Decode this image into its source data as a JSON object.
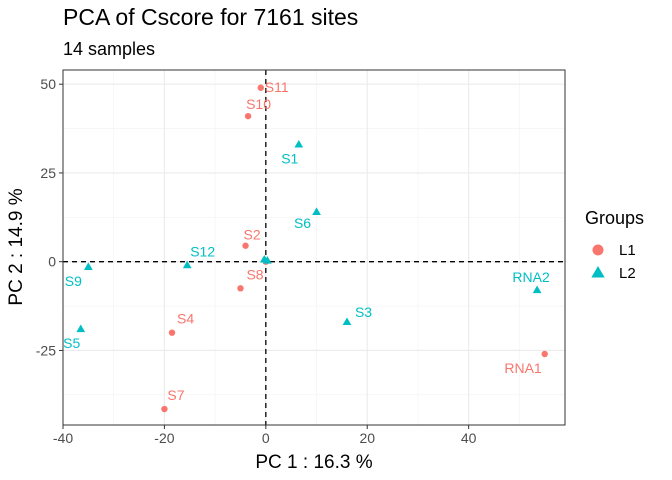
{
  "chart_data": {
    "type": "scatter",
    "title": "PCA of Cscore for 7161 sites",
    "subtitle": "14 samples",
    "xlabel": "PC 1 : 16.3 %",
    "ylabel": "PC 2 : 14.9 %",
    "xlim": [
      -40,
      59
    ],
    "ylim": [
      -46,
      54
    ],
    "xticks": [
      -40,
      -20,
      0,
      20,
      40
    ],
    "xtick_labels": [
      "-40",
      "-20",
      "0",
      "20",
      "40"
    ],
    "yticks": [
      -25,
      0,
      25,
      50
    ],
    "ytick_labels": [
      "-25",
      "0",
      "25",
      "50"
    ],
    "grid": true,
    "reference_lines": {
      "x": 0,
      "y": 0
    },
    "legend": {
      "title": "Groups",
      "position": "right"
    },
    "series": [
      {
        "name": "L1",
        "color": "#F8766D",
        "marker": "circle",
        "points": [
          {
            "label": "S11",
            "x": -1,
            "y": 49
          },
          {
            "label": "S10",
            "x": -3.5,
            "y": 41
          },
          {
            "label": "S2",
            "x": -4,
            "y": 4.5
          },
          {
            "label": "S8",
            "x": -5,
            "y": -7.5
          },
          {
            "label": "S4",
            "x": -18.5,
            "y": -20
          },
          {
            "label": "S7",
            "x": -20,
            "y": -41.5
          },
          {
            "label": "RNA1",
            "x": 55,
            "y": -26
          },
          {
            "label": "",
            "x": 0,
            "y": 0
          }
        ]
      },
      {
        "name": "L2",
        "color": "#00BFC4",
        "marker": "triangle",
        "points": [
          {
            "label": "S1",
            "x": 6.5,
            "y": 33
          },
          {
            "label": "S6",
            "x": 10,
            "y": 14
          },
          {
            "label": "S12",
            "x": -15.5,
            "y": -1
          },
          {
            "label": "S9",
            "x": -35,
            "y": -1.5
          },
          {
            "label": "S5",
            "x": -36.5,
            "y": -19
          },
          {
            "label": "S3",
            "x": 16,
            "y": -17
          },
          {
            "label": "RNA2",
            "x": 53.5,
            "y": -8
          },
          {
            "label": "",
            "x": -0.3,
            "y": 0.6
          },
          {
            "label": "",
            "x": 0.3,
            "y": 0.3
          }
        ]
      }
    ]
  }
}
